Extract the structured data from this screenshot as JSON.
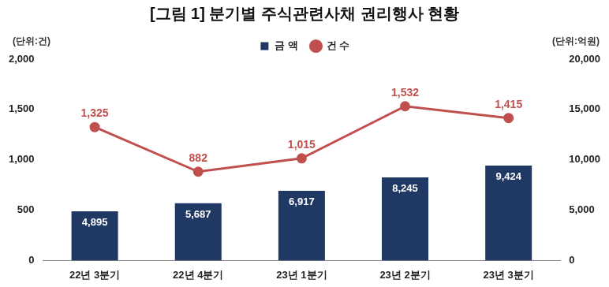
{
  "chart_data": {
    "type": "bar",
    "title": "[그림 1] 분기별 주식관련사채 권리행사 현황",
    "ylabel": "(단위:건)",
    "y2label": "(단위:억원)",
    "categories": [
      "22년 3분기",
      "22년 4분기",
      "23년 1분기",
      "23년 2분기",
      "23년 3분기"
    ],
    "series": [
      {
        "name": "금 액",
        "type": "bar",
        "color": "#1f3864",
        "axis": "y2",
        "values": [
          4895,
          5687,
          6917,
          8245,
          9424
        ],
        "value_labels": [
          "4,895",
          "5,687",
          "6,917",
          "8,245",
          "9,424"
        ]
      },
      {
        "name": "건 수",
        "type": "line",
        "color": "#c0504d",
        "marker": "circle",
        "values": [
          1325,
          882,
          1015,
          1532,
          1415
        ],
        "value_labels": [
          "1,325",
          "882",
          "1,015",
          "1,532",
          "1,415"
        ]
      }
    ],
    "ylim": [
      0,
      2000
    ],
    "yticks": [
      0,
      500,
      {
        "value": 1000,
        "label": "1,000"
      },
      {
        "value": 1500,
        "label": "1,500"
      },
      {
        "value": 2000,
        "label": "2,000"
      }
    ],
    "y2lim": [
      0,
      20000
    ],
    "y2ticks": [
      0,
      {
        "value": 5000,
        "label": "5,000"
      },
      {
        "value": 10000,
        "label": "10,000"
      },
      {
        "value": 15000,
        "label": "15,000"
      },
      {
        "value": 20000,
        "label": "20,000"
      }
    ],
    "grid": false,
    "legend": "top",
    "data_labels": true
  }
}
